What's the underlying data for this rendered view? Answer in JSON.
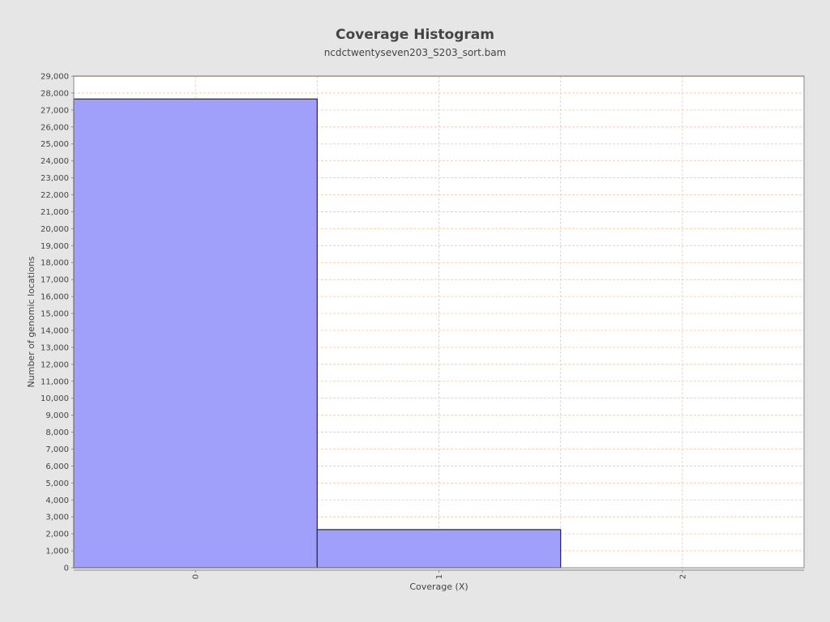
{
  "chart_data": {
    "type": "bar",
    "title": "Coverage Histogram",
    "subtitle": "ncdctwentyseven203_S203_sort.bam",
    "xlabel": "Coverage (X)",
    "ylabel": "Number of genomic locations",
    "categories": [
      "0",
      "1",
      "2"
    ],
    "x": [
      0,
      1,
      2
    ],
    "values": [
      27650,
      2250,
      0
    ],
    "xlim": [
      -0.5,
      2.5
    ],
    "ylim": [
      0,
      29000
    ],
    "ytick_step": 1000,
    "grid": true,
    "legend": "none",
    "colors": {
      "bar_fill": "#a0a0fa",
      "bar_stroke": "#333344",
      "grid": "#f0c8a8",
      "plot_bg": "#ffffff",
      "page_bg": "#e6e6e6"
    }
  }
}
